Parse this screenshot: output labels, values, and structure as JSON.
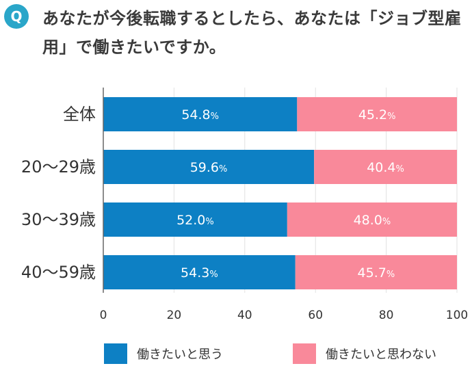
{
  "question": {
    "badge": "Q",
    "text": "あなたが今後転職するとしたら、あなたは「ジョブ型雇用」で働きたいですか。"
  },
  "chart_data": {
    "type": "bar",
    "orientation": "horizontal",
    "stacked": true,
    "percent_unit": "%",
    "categories": [
      "全体",
      "20〜29歳",
      "30〜39歳",
      "40〜59歳"
    ],
    "series": [
      {
        "name": "働きたいと思う",
        "color": "#0d80c4",
        "values": [
          54.8,
          59.6,
          52.0,
          54.3
        ]
      },
      {
        "name": "働きたいと思わない",
        "color": "#f9899a",
        "values": [
          45.2,
          40.4,
          48.0,
          45.7
        ]
      }
    ],
    "xlim": [
      0,
      100
    ],
    "xticks": [
      0,
      20,
      40,
      60,
      80,
      100
    ],
    "grid": true,
    "legend_position": "bottom"
  }
}
